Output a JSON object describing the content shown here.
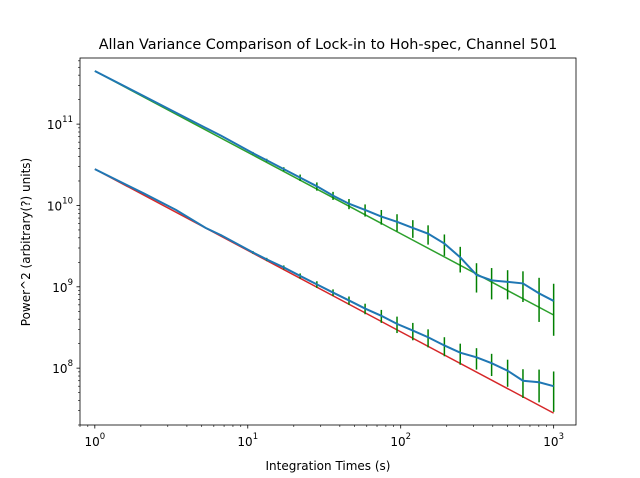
{
  "chart_data": {
    "type": "line",
    "title": "Allan Variance Comparison of Lock-in to Hoh-spec, Channel 501",
    "xlabel": "Integration Times (s)",
    "ylabel": "Power^2 (arbitrary(?) units)",
    "xscale": "log",
    "yscale": "log",
    "xlim": [
      0.8,
      1400
    ],
    "ylim": [
      20000000.0,
      650000000000.0
    ],
    "x_ticks": [
      {
        "value": 1,
        "base": "10",
        "exp": "0"
      },
      {
        "value": 10,
        "base": "10",
        "exp": "1"
      },
      {
        "value": 100,
        "base": "10",
        "exp": "2"
      },
      {
        "value": 1000,
        "base": "10",
        "exp": "3"
      }
    ],
    "y_ticks": [
      {
        "value": 100000000.0,
        "base": "10",
        "exp": "8"
      },
      {
        "value": 1000000000.0,
        "base": "10",
        "exp": "9"
      },
      {
        "value": 10000000000.0,
        "base": "10",
        "exp": "10"
      },
      {
        "value": 100000000000.0,
        "base": "10",
        "exp": "11"
      }
    ],
    "grid": false,
    "legend": "none",
    "colors": {
      "fit_upper": "#2ca02c",
      "fit_lower": "#d62728",
      "measured": "#1f77b4",
      "errorbars": "#008000"
    },
    "fit_lines": [
      {
        "color": "#2ca02c",
        "x": [
          1,
          1000
        ],
        "y": [
          450000000000.0,
          450000000.0
        ]
      },
      {
        "color": "#d62728",
        "x": [
          1,
          1000
        ],
        "y": [
          28000000000.0,
          28000000.0
        ]
      }
    ],
    "series": [
      {
        "color": "#1f77b4",
        "points": [
          {
            "x": 1,
            "y": 450000000000.0
          },
          {
            "x": 2.1,
            "y": 220000000000.0
          },
          {
            "x": 3.4,
            "y": 138000000000.0
          },
          {
            "x": 5.3,
            "y": 90000000000.0,
            "err": 1000000000.0
          },
          {
            "x": 6.7,
            "y": 72000000000.0,
            "err": 1000000000.0
          },
          {
            "x": 10.8,
            "y": 44000000000.0,
            "err": 1500000000.0
          },
          {
            "x": 13.3,
            "y": 36000000000.0,
            "err": 1500000000.0
          },
          {
            "x": 17.2,
            "y": 28000000000.0,
            "err": 1500000000.0
          },
          {
            "x": 22,
            "y": 22000000000.0,
            "err": 2000000000.0
          },
          {
            "x": 28.3,
            "y": 17200000000.0,
            "err": 2000000000.0
          },
          {
            "x": 36.1,
            "y": 13200000000.0,
            "err": 1500000000.0
          },
          {
            "x": 45.9,
            "y": 10500000000.0,
            "err": 1500000000.0
          },
          {
            "x": 58.5,
            "y": 8800000000.0,
            "err": 1500000000.0
          },
          {
            "x": 74.7,
            "y": 7300000000.0,
            "err": 1500000000.0
          },
          {
            "x": 94.6,
            "y": 6300000000.0,
            "err": 1500000000.0
          },
          {
            "x": 120,
            "y": 5300000000.0,
            "err": 1300000000.0
          },
          {
            "x": 151,
            "y": 4500000000.0,
            "err": 1200000000.0
          },
          {
            "x": 193,
            "y": 3400000000.0,
            "err": 1000000000.0
          },
          {
            "x": 245,
            "y": 2300000000.0,
            "err": 800000000.0
          },
          {
            "x": 313,
            "y": 1400000000.0,
            "err": 550000000.0
          },
          {
            "x": 393,
            "y": 1200000000.0,
            "err": 500000000.0
          },
          {
            "x": 500,
            "y": 1150000000.0,
            "err": 450000000.0
          },
          {
            "x": 630,
            "y": 1100000000.0,
            "err": 450000000.0
          },
          {
            "x": 803,
            "y": 830000000.0,
            "err": 460000000.0
          },
          {
            "x": 1000,
            "y": 670000000.0,
            "err": 420000000.0
          }
        ]
      },
      {
        "color": "#1f77b4",
        "points": [
          {
            "x": 1,
            "y": 28000000000.0
          },
          {
            "x": 2.1,
            "y": 14000000000.0
          },
          {
            "x": 3.4,
            "y": 8800000000.0
          },
          {
            "x": 5.3,
            "y": 5300000000.0
          },
          {
            "x": 6.7,
            "y": 4300000000.0,
            "err": 100000000.0
          },
          {
            "x": 10.8,
            "y": 2650000000.0,
            "err": 100000000.0
          },
          {
            "x": 13.3,
            "y": 2170000000.0,
            "err": 100000000.0
          },
          {
            "x": 17.2,
            "y": 1730000000.0,
            "err": 100000000.0
          },
          {
            "x": 22,
            "y": 1360000000.0,
            "err": 100000000.0
          },
          {
            "x": 28.3,
            "y": 1070000000.0,
            "err": 100000000.0
          },
          {
            "x": 36.1,
            "y": 850000000.0,
            "err": 80000000.0
          },
          {
            "x": 45.9,
            "y": 680000000.0,
            "err": 80000000.0
          },
          {
            "x": 58.5,
            "y": 540000000.0,
            "err": 80000000.0
          },
          {
            "x": 74.7,
            "y": 440000000.0,
            "err": 80000000.0
          },
          {
            "x": 94.6,
            "y": 350000000.0,
            "err": 80000000.0
          },
          {
            "x": 120,
            "y": 290000000.0,
            "err": 70000000.0
          },
          {
            "x": 151,
            "y": 240000000.0,
            "err": 60000000.0
          },
          {
            "x": 193,
            "y": 190000000.0,
            "err": 50000000.0
          },
          {
            "x": 245,
            "y": 155000000.0,
            "err": 45000000.0
          },
          {
            "x": 313,
            "y": 136000000.0,
            "err": 40000000.0
          },
          {
            "x": 393,
            "y": 115000000.0,
            "err": 35000000.0
          },
          {
            "x": 500,
            "y": 93000000.0,
            "err": 34000000.0
          },
          {
            "x": 630,
            "y": 70000000.0,
            "err": 27000000.0
          },
          {
            "x": 803,
            "y": 67000000.0,
            "err": 29000000.0
          },
          {
            "x": 1000,
            "y": 60000000.0,
            "err": 31000000.0
          }
        ]
      }
    ]
  }
}
